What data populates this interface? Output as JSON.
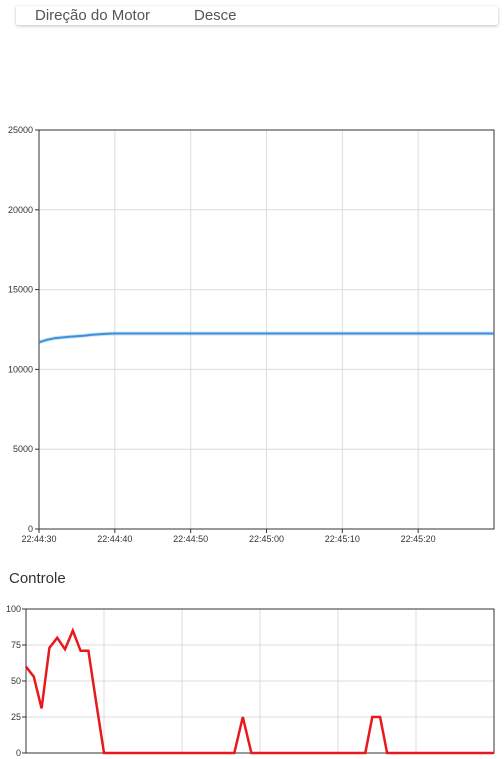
{
  "status": {
    "label": "Direção do Motor",
    "value": "Desce"
  },
  "controle_title": "Controle",
  "colors": {
    "speed_line": "#3d8fdb",
    "control_line": "#e8191c",
    "grid": "#dcdcdc",
    "axis": "#333333"
  },
  "chart_data": [
    {
      "type": "line",
      "title": "",
      "xlabel": "",
      "ylabel": "",
      "x_ticks": [
        "22:44:30",
        "22:44:40",
        "22:44:50",
        "22:45:00",
        "22:45:10",
        "22:45:20"
      ],
      "y_ticks": [
        "0",
        "5000",
        "10000",
        "15000",
        "20000",
        "25000"
      ],
      "xlim": [
        0,
        60
      ],
      "ylim": [
        0,
        25000
      ],
      "grid": true,
      "series": [
        {
          "color": "#3d8fdb",
          "x": [
            0,
            1,
            2,
            3,
            4,
            5,
            6,
            7,
            8,
            9,
            10,
            60
          ],
          "y": [
            11700,
            11850,
            11950,
            12000,
            12050,
            12080,
            12120,
            12170,
            12200,
            12230,
            12250,
            12250
          ]
        }
      ]
    },
    {
      "type": "line",
      "title": "Controle",
      "xlabel": "",
      "ylabel": "",
      "y_ticks": [
        "0",
        "25",
        "50",
        "75",
        "100"
      ],
      "xlim": [
        0,
        60
      ],
      "ylim": [
        0,
        100
      ],
      "grid": true,
      "series": [
        {
          "color": "#e8191c",
          "x": [
            0,
            1,
            2,
            3,
            4,
            5,
            6,
            7,
            8,
            9,
            10,
            26.7,
            27.8,
            28.9,
            43.5,
            44.4,
            45.4,
            46.3,
            60
          ],
          "y": [
            60,
            53,
            31,
            73,
            80,
            72,
            85,
            71,
            71,
            35,
            0,
            0,
            25,
            0,
            0,
            25,
            25,
            0,
            0
          ]
        }
      ]
    }
  ]
}
